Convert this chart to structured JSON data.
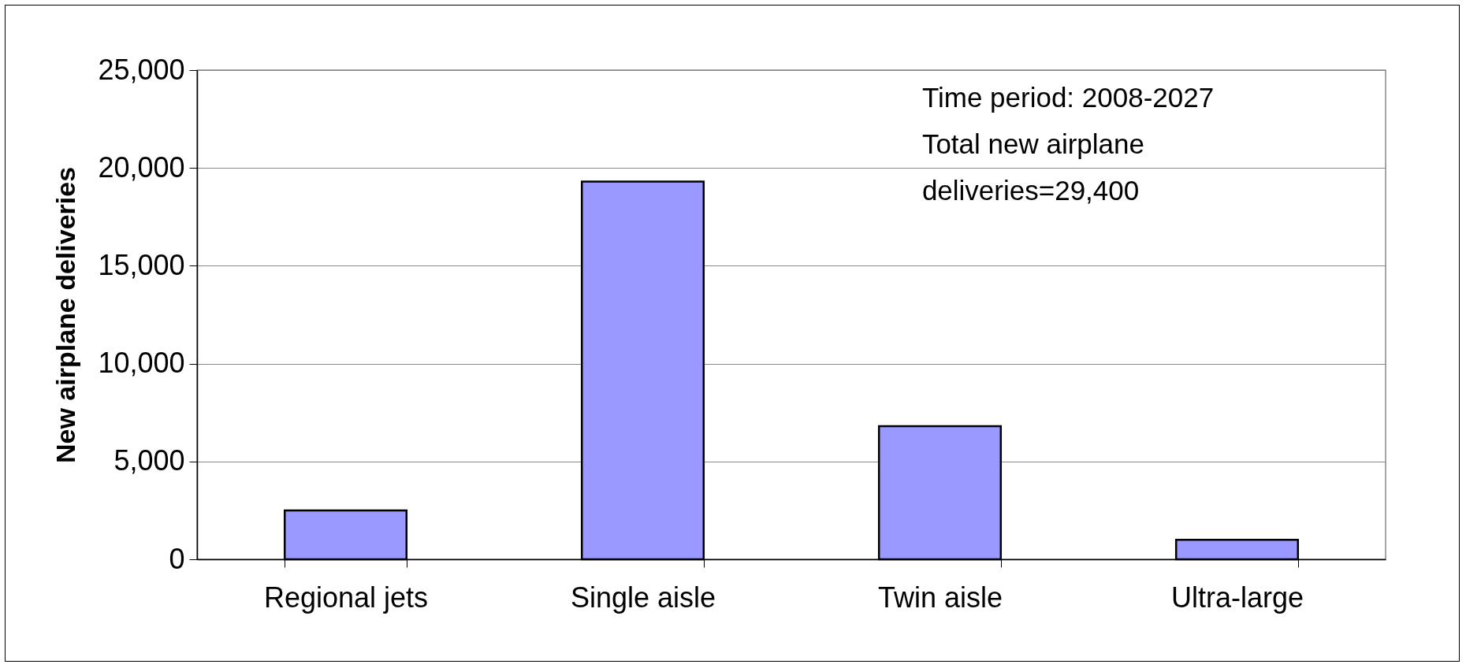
{
  "chart_data": {
    "type": "bar",
    "categories": [
      "Regional jets",
      "Single aisle",
      "Twin aisle",
      "Ultra-large"
    ],
    "values": [
      2500,
      19300,
      6800,
      1000
    ],
    "color": "#9999ff",
    "ylabel": "New airplane deliveries",
    "ylim": [
      0,
      25000
    ],
    "yticks": [
      0,
      {
        "value": 5000,
        "label": "5,000"
      },
      {
        "value": 10000,
        "label": "10,000"
      },
      {
        "value": 15000,
        "label": "15,000"
      },
      {
        "value": 20000,
        "label": "20,000"
      },
      {
        "value": 25000,
        "label": "25,000"
      }
    ],
    "grid": "y",
    "annotations": [
      "Time period: 2008-2027",
      "Total new airplane deliveries=29,400"
    ]
  }
}
